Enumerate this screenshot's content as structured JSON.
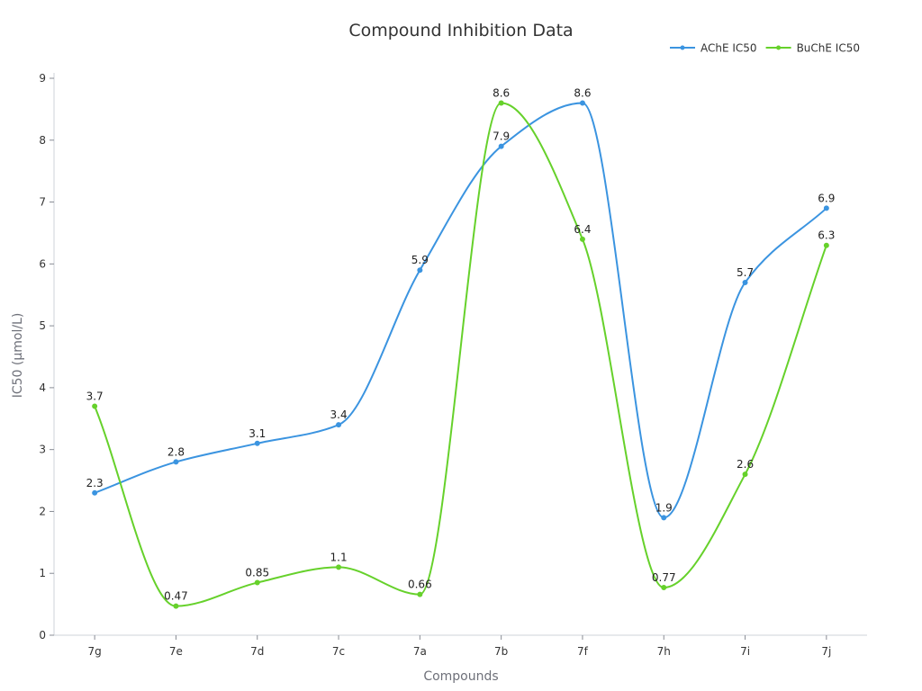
{
  "chart_data": {
    "type": "line",
    "title": "Compound Inhibition Data",
    "xlabel": "Compounds",
    "ylabel": "IC50 (μmol/L)",
    "ylim": [
      0,
      9
    ],
    "yticks": [
      0,
      1,
      2,
      3,
      4,
      5,
      6,
      7,
      8,
      9
    ],
    "categories": [
      "7g",
      "7e",
      "7d",
      "7c",
      "7a",
      "7b",
      "7f",
      "7h",
      "7i",
      "7j"
    ],
    "series": [
      {
        "name": "AChE IC50",
        "color": "#3b94e0",
        "values": [
          2.3,
          2.8,
          3.1,
          3.4,
          5.9,
          7.9,
          8.6,
          1.9,
          5.7,
          6.9
        ]
      },
      {
        "name": "BuChE IC50",
        "color": "#66d12b",
        "values": [
          3.7,
          0.47,
          0.85,
          1.1,
          0.66,
          8.6,
          6.4,
          0.77,
          2.6,
          6.3
        ]
      }
    ],
    "legend_position": "top-right",
    "grid": false,
    "smooth": true,
    "show_data_labels": true
  }
}
